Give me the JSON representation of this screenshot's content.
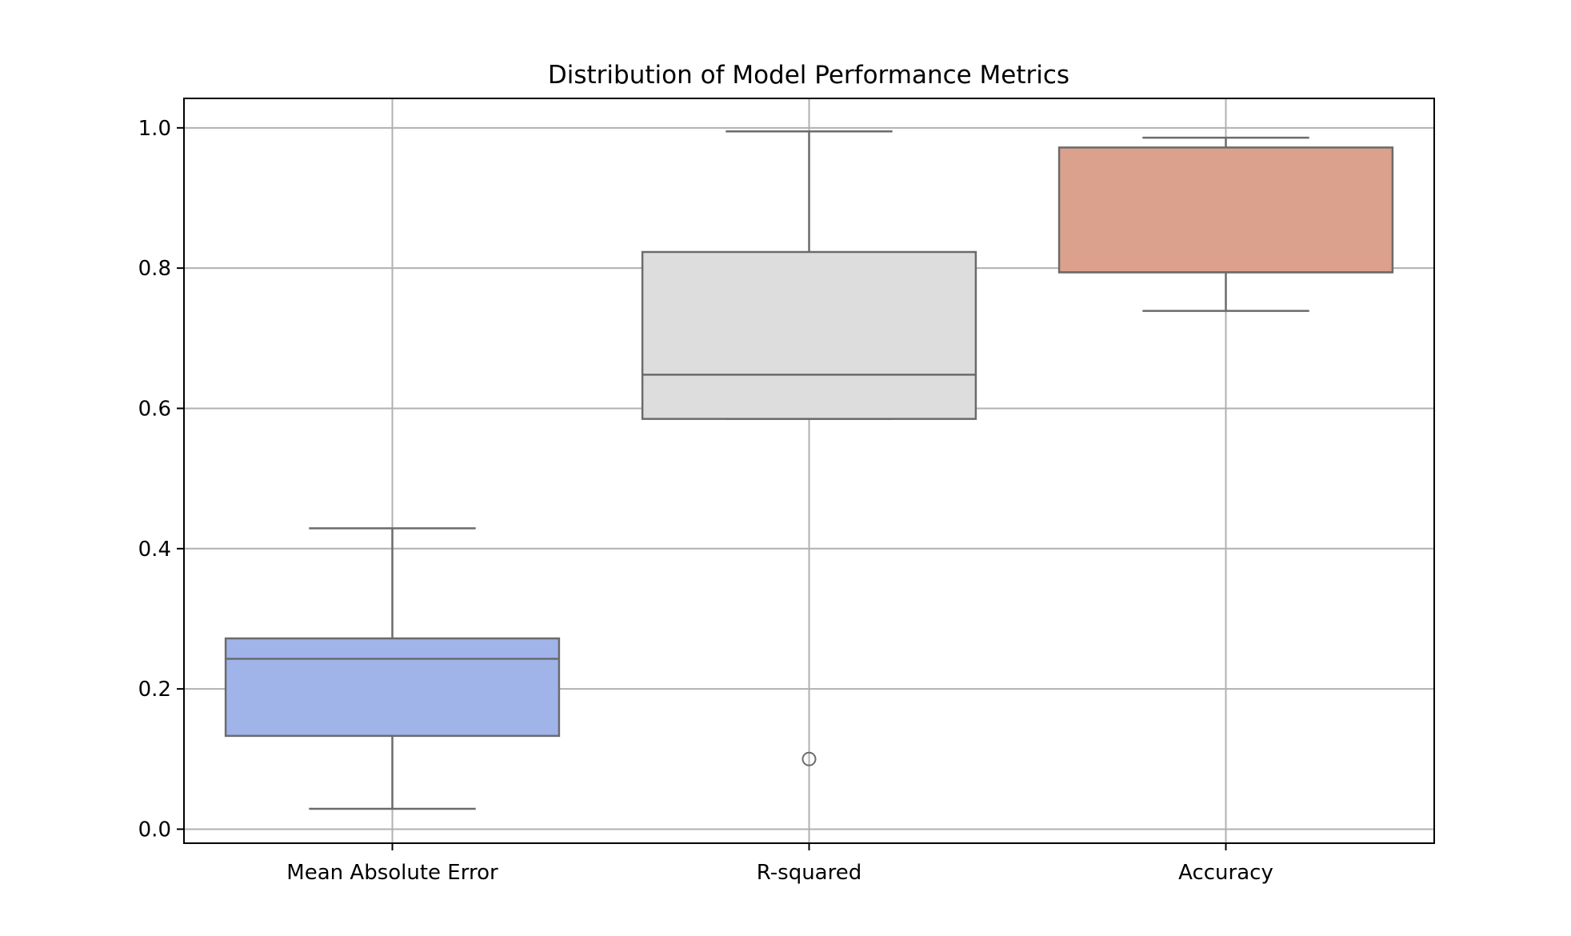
{
  "chart_data": {
    "type": "box",
    "title": "Distribution of Model Performance Metrics",
    "xlabel": "",
    "ylabel": "",
    "ylim": [
      -0.02,
      1.042
    ],
    "yticks": [
      0.0,
      0.2,
      0.4,
      0.6,
      0.8,
      1.0
    ],
    "ytick_labels": [
      "0.0",
      "0.2",
      "0.4",
      "0.6",
      "0.8",
      "1.0"
    ],
    "grid": true,
    "categories": [
      "Mean Absolute Error",
      "R-squared",
      "Accuracy"
    ],
    "boxes": [
      {
        "category": "Mean Absolute Error",
        "whisker_low": 0.029,
        "q1": 0.133,
        "median": 0.243,
        "q3": 0.272,
        "whisker_high": 0.429,
        "outliers": [],
        "color": "#a0b4ea"
      },
      {
        "category": "R-squared",
        "whisker_low": 0.585,
        "q1": 0.585,
        "median": 0.648,
        "q3": 0.823,
        "whisker_high": 0.995,
        "outliers": [
          0.1
        ],
        "color": "#dddddd"
      },
      {
        "category": "Accuracy",
        "whisker_low": 0.739,
        "q1": 0.794,
        "median": 0.794,
        "q3": 0.972,
        "whisker_high": 0.986,
        "outliers": [],
        "color": "#dba18c"
      }
    ],
    "line_color": "#6b6b6b",
    "grid_color": "#b0b0b0"
  }
}
